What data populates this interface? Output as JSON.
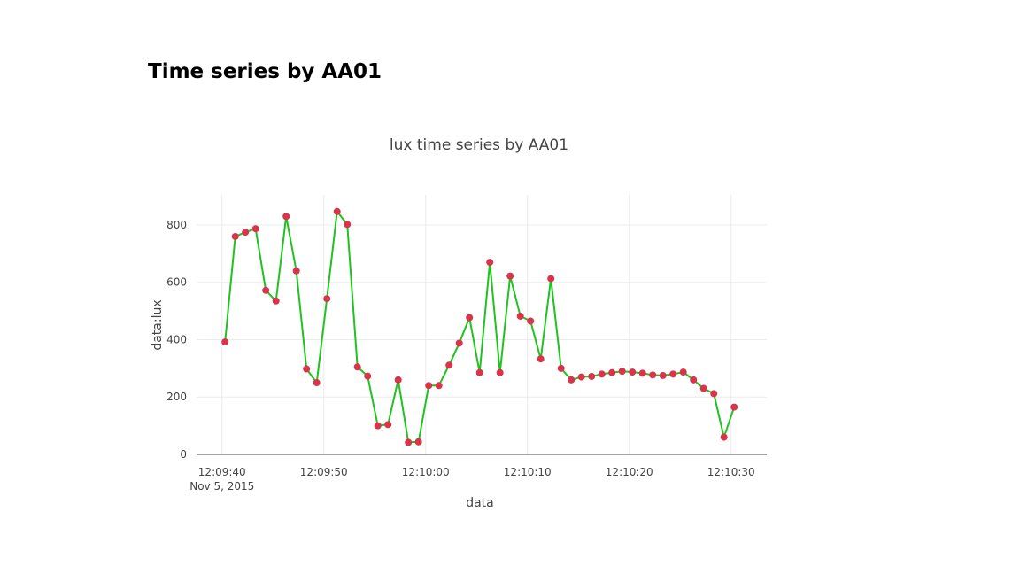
{
  "page": {
    "heading": "Time series by AA01"
  },
  "chart_data": {
    "type": "line",
    "title": "lux time series by AA01",
    "xlabel": "data",
    "ylabel": "data:lux",
    "x_tick_labels": [
      "12:09:40",
      "12:09:50",
      "12:10:00",
      "12:10:10",
      "12:10:20",
      "12:10:30"
    ],
    "x_date_label": "Nov 5, 2015",
    "x_tick_seconds": [
      0,
      10,
      20,
      30,
      40,
      50
    ],
    "y_ticks": [
      0,
      200,
      400,
      600,
      800
    ],
    "xlim": [
      -2.5,
      53.5
    ],
    "ylim": [
      0,
      905
    ],
    "grid": true,
    "line_color": "#1fc21f",
    "marker_color": "#d9344a",
    "series": [
      {
        "x": [
          0.3,
          1.3,
          2.3,
          3.3,
          4.3,
          5.3,
          6.3,
          7.3,
          8.3,
          9.3,
          10.3,
          11.3,
          12.3,
          13.3,
          14.3,
          15.3,
          16.3,
          17.3,
          18.3,
          19.3,
          20.3,
          21.3,
          22.3,
          23.3,
          24.3,
          25.3,
          26.3,
          27.3,
          28.3,
          29.3,
          30.3,
          31.3,
          32.3,
          33.3,
          34.3,
          35.3,
          36.3,
          37.3,
          38.3,
          39.3,
          40.3,
          41.3,
          42.3,
          43.3,
          44.3,
          45.3,
          46.3,
          47.3,
          48.3,
          49.3,
          50.3
        ],
        "values": [
          392,
          760,
          775,
          787,
          572,
          535,
          830,
          640,
          298,
          250,
          543,
          847,
          802,
          305,
          273,
          100,
          104,
          260,
          42,
          44,
          240,
          240,
          311,
          388,
          477,
          285,
          670,
          285,
          622,
          482,
          465,
          333,
          613,
          300,
          260,
          270,
          272,
          280,
          285,
          290,
          287,
          283,
          277,
          275,
          280,
          287,
          260,
          230,
          212,
          60,
          165
        ]
      }
    ]
  }
}
